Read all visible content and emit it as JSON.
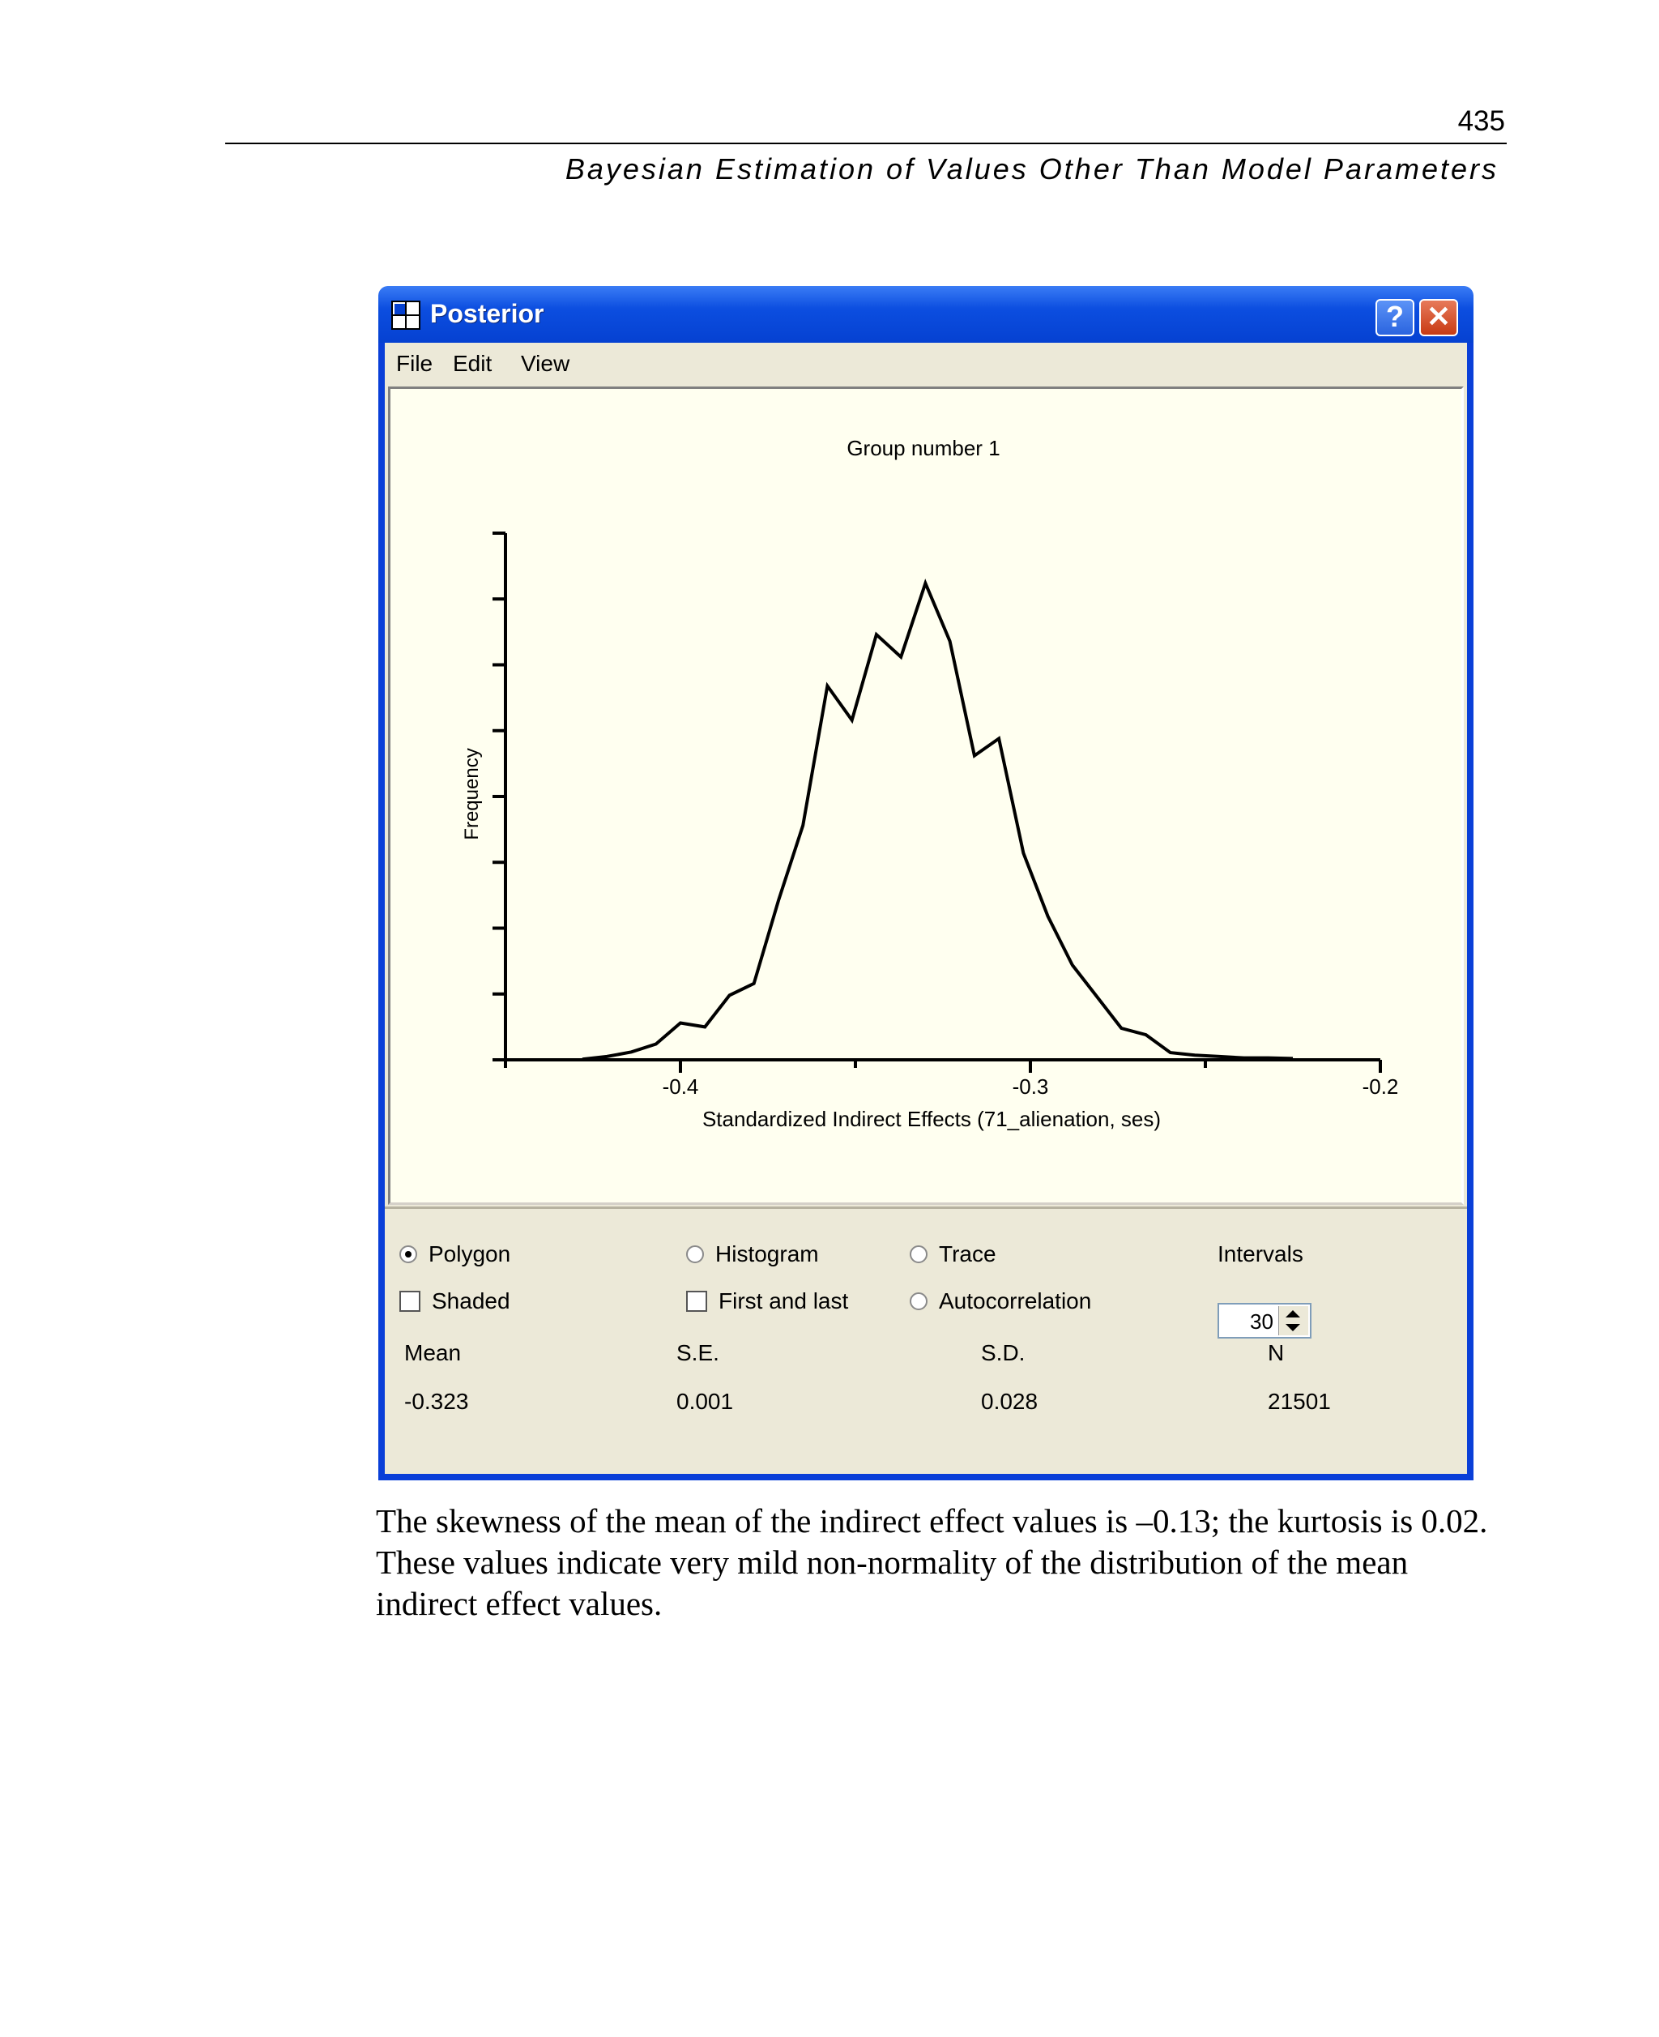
{
  "page": {
    "number": "435",
    "running_head": "Bayesian Estimation of Values Other Than Model Parameters",
    "body_text": "The skewness of the mean of the indirect effect values is –0.13; the kurtosis is 0.02. These values indicate very mild non-normality of the distribution of the mean indirect effect values."
  },
  "window": {
    "title": "Posterior",
    "help_label": "?",
    "close_label": "✕",
    "menu": [
      "File",
      "Edit",
      "View"
    ]
  },
  "chart_data": {
    "type": "line",
    "title": "Group number 1",
    "xlabel": "Standardized Indirect Effects (71_alienation, ses)",
    "ylabel": "Frequency",
    "xlim": [
      -0.45,
      -0.2
    ],
    "ylim": [
      0,
      8
    ],
    "x_ticks": [
      -0.4,
      -0.3,
      -0.2
    ],
    "x_tick_labels": [
      "-0.4",
      "-0.3",
      "-0.2"
    ],
    "y_tick_count": 9,
    "grid": false,
    "series": [
      {
        "x": [
          -0.428,
          -0.421,
          -0.414,
          -0.407,
          -0.4,
          -0.393,
          -0.386,
          -0.379,
          -0.372,
          -0.365,
          -0.358,
          -0.351,
          -0.344,
          -0.337,
          -0.33,
          -0.323,
          -0.316,
          -0.309,
          -0.302,
          -0.295,
          -0.288,
          -0.281,
          -0.274,
          -0.267,
          -0.26,
          -0.253,
          -0.246,
          -0.239,
          -0.232,
          -0.225
        ],
        "y": [
          0.01,
          0.05,
          0.12,
          0.24,
          0.56,
          0.5,
          0.98,
          1.16,
          2.42,
          3.56,
          5.68,
          5.16,
          6.46,
          6.12,
          7.24,
          6.36,
          4.62,
          4.88,
          3.14,
          2.18,
          1.44,
          0.96,
          0.48,
          0.38,
          0.11,
          0.07,
          0.05,
          0.03,
          0.03,
          0.02
        ]
      }
    ]
  },
  "controls": {
    "polygon": {
      "label": "Polygon",
      "checked": true
    },
    "histogram": {
      "label": "Histogram",
      "checked": false
    },
    "trace": {
      "label": "Trace",
      "checked": false
    },
    "shaded": {
      "label": "Shaded",
      "checked": false
    },
    "first_and_last": {
      "label": "First and last",
      "checked": false
    },
    "autocorrelation": {
      "label": "Autocorrelation",
      "checked": false
    },
    "intervals": {
      "label": "Intervals",
      "value": "30"
    }
  },
  "stats": {
    "mean_label": "Mean",
    "mean_value": "-0.323",
    "se_label": "S.E.",
    "se_value": "0.001",
    "sd_label": "S.D.",
    "sd_value": "0.028",
    "n_label": "N",
    "n_value": "21501"
  }
}
